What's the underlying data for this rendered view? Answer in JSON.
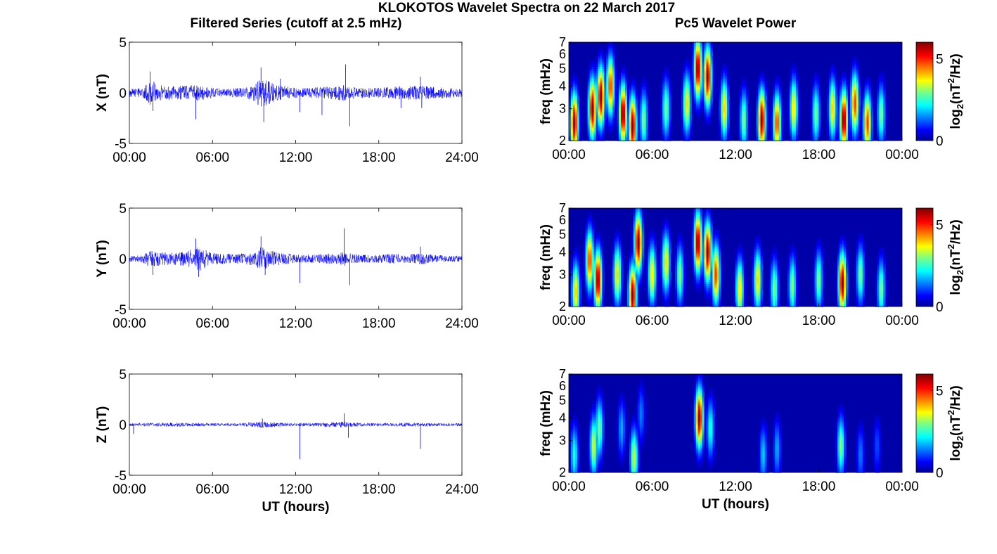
{
  "figure": {
    "title": "KLOKOTOS Wavelet Spectra on 22 March 2017",
    "left_column_title": "Filtered Series (cutoff at 2.5 mHz)",
    "right_column_title": "Pc5 Wavelet Power"
  },
  "chart_data": [
    {
      "type": "line",
      "panel": "X",
      "ylabel": "X (nT)",
      "xlabel": "",
      "xlim": [
        0,
        24
      ],
      "ylim": [
        -5,
        5
      ],
      "yticks": [
        "5",
        "0",
        "-5"
      ],
      "xticks": [
        "00:00",
        "06:00",
        "12:00",
        "18:00",
        "24:00"
      ],
      "line_color": "#0000ff",
      "envelope": {
        "x": [
          0,
          1,
          1.5,
          2,
          2.5,
          3,
          4,
          5,
          6,
          7,
          8,
          9,
          9.5,
          10,
          10.5,
          11,
          12,
          13,
          14,
          15,
          15.5,
          16,
          17,
          18,
          19,
          20,
          21,
          22,
          23,
          24
        ],
        "amplitude": [
          0.4,
          0.5,
          1.2,
          1.0,
          0.8,
          0.7,
          0.7,
          0.8,
          0.5,
          0.4,
          0.5,
          0.8,
          1.5,
          1.2,
          0.8,
          0.7,
          0.5,
          0.5,
          0.6,
          0.7,
          0.8,
          0.6,
          0.5,
          0.5,
          0.6,
          0.7,
          0.7,
          0.6,
          0.5,
          0.4
        ]
      },
      "spikes": [
        {
          "x": 1.5,
          "y": 2.1
        },
        {
          "x": 1.7,
          "y": -1.8
        },
        {
          "x": 4.8,
          "y": -2.6
        },
        {
          "x": 9.5,
          "y": 2.5
        },
        {
          "x": 9.7,
          "y": -2.9
        },
        {
          "x": 10.9,
          "y": 1.4
        },
        {
          "x": 12.3,
          "y": -1.9
        },
        {
          "x": 13.9,
          "y": -2.2
        },
        {
          "x": 15.6,
          "y": 2.8
        },
        {
          "x": 15.9,
          "y": -3.3
        },
        {
          "x": 19.6,
          "y": -1.5
        },
        {
          "x": 21.0,
          "y": 1.6
        },
        {
          "x": 21.1,
          "y": -1.5
        }
      ]
    },
    {
      "type": "heatmap",
      "panel": "X",
      "ylabel": "freq (mHz)",
      "xlabel": "",
      "xlim": [
        0,
        24
      ],
      "ylim": [
        2,
        7
      ],
      "yscale": "log",
      "yticks": [
        "2",
        "3",
        "4",
        "5",
        "6",
        "7"
      ],
      "xticks": [
        "00:00",
        "06:00",
        "12:00",
        "18:00",
        "00:00"
      ],
      "colorbar": {
        "label_prefix": "log",
        "label_sub": "2",
        "label_mid": "(nT",
        "label_sup": "2",
        "label_suffix": "/Hz)",
        "ticks": [
          "5",
          "0"
        ],
        "range": [
          0,
          6
        ]
      },
      "peaks": [
        {
          "t": 0.4,
          "f": 2.5,
          "p": 6
        },
        {
          "t": 1.7,
          "f": 3.0,
          "p": 6
        },
        {
          "t": 2.3,
          "f": 3.5,
          "p": 6
        },
        {
          "t": 3.0,
          "f": 4.0,
          "p": 5
        },
        {
          "t": 3.9,
          "f": 2.8,
          "p": 6
        },
        {
          "t": 4.6,
          "f": 2.4,
          "p": 6
        },
        {
          "t": 5.4,
          "f": 2.6,
          "p": 3
        },
        {
          "t": 7.0,
          "f": 3.0,
          "p": 3
        },
        {
          "t": 8.5,
          "f": 3.2,
          "p": 4
        },
        {
          "t": 9.3,
          "f": 5.0,
          "p": 6
        },
        {
          "t": 10.0,
          "f": 4.5,
          "p": 6
        },
        {
          "t": 11.2,
          "f": 3.0,
          "p": 4
        },
        {
          "t": 12.6,
          "f": 2.6,
          "p": 3
        },
        {
          "t": 13.9,
          "f": 2.6,
          "p": 6
        },
        {
          "t": 15.0,
          "f": 2.5,
          "p": 5
        },
        {
          "t": 16.2,
          "f": 3.0,
          "p": 4
        },
        {
          "t": 17.8,
          "f": 2.8,
          "p": 3
        },
        {
          "t": 19.0,
          "f": 3.0,
          "p": 4
        },
        {
          "t": 19.8,
          "f": 2.6,
          "p": 6
        },
        {
          "t": 20.6,
          "f": 3.2,
          "p": 5
        },
        {
          "t": 21.5,
          "f": 2.5,
          "p": 5
        },
        {
          "t": 22.5,
          "f": 2.8,
          "p": 3
        }
      ]
    },
    {
      "type": "line",
      "panel": "Y",
      "ylabel": "Y (nT)",
      "xlabel": "",
      "xlim": [
        0,
        24
      ],
      "ylim": [
        -5,
        5
      ],
      "yticks": [
        "5",
        "0",
        "-5"
      ],
      "xticks": [
        "00:00",
        "06:00",
        "12:00",
        "18:00",
        "24:00"
      ],
      "line_color": "#0000ff",
      "envelope": {
        "x": [
          0,
          1,
          1.5,
          2,
          3,
          4,
          5,
          6,
          7,
          8,
          9,
          9.5,
          10,
          11,
          12,
          13,
          14,
          15,
          15.5,
          16,
          17,
          18,
          19,
          20,
          21,
          22,
          23,
          24
        ],
        "amplitude": [
          0.3,
          0.4,
          0.9,
          0.7,
          0.6,
          0.7,
          1.2,
          0.6,
          0.5,
          0.5,
          0.7,
          1.2,
          0.9,
          0.6,
          0.4,
          0.4,
          0.5,
          0.5,
          0.7,
          0.5,
          0.4,
          0.4,
          0.5,
          0.4,
          0.6,
          0.4,
          0.3,
          0.3
        ]
      },
      "spikes": [
        {
          "x": 1.7,
          "y": -1.6
        },
        {
          "x": 4.8,
          "y": 2.0
        },
        {
          "x": 5.0,
          "y": -1.8
        },
        {
          "x": 9.5,
          "y": 2.2
        },
        {
          "x": 9.8,
          "y": -1.6
        },
        {
          "x": 12.3,
          "y": -2.4
        },
        {
          "x": 15.5,
          "y": 3.0
        },
        {
          "x": 15.9,
          "y": -2.6
        },
        {
          "x": 21.0,
          "y": 1.2
        }
      ]
    },
    {
      "type": "heatmap",
      "panel": "Y",
      "ylabel": "freq (mHz)",
      "xlabel": "",
      "xlim": [
        0,
        24
      ],
      "ylim": [
        2,
        7
      ],
      "yscale": "log",
      "yticks": [
        "2",
        "3",
        "4",
        "5",
        "6",
        "7"
      ],
      "xticks": [
        "00:00",
        "06:00",
        "12:00",
        "18:00",
        "00:00"
      ],
      "colorbar": {
        "label_prefix": "log",
        "label_sub": "2",
        "label_mid": "(nT",
        "label_sup": "2",
        "label_suffix": "/Hz)",
        "ticks": [
          "5",
          "0"
        ],
        "range": [
          0,
          6
        ]
      },
      "peaks": [
        {
          "t": 0.5,
          "f": 2.4,
          "p": 4
        },
        {
          "t": 1.5,
          "f": 3.6,
          "p": 5
        },
        {
          "t": 2.1,
          "f": 2.8,
          "p": 6
        },
        {
          "t": 3.5,
          "f": 3.0,
          "p": 4
        },
        {
          "t": 4.6,
          "f": 2.3,
          "p": 6
        },
        {
          "t": 5.0,
          "f": 4.5,
          "p": 6
        },
        {
          "t": 6.0,
          "f": 3.0,
          "p": 4
        },
        {
          "t": 7.0,
          "f": 3.5,
          "p": 4
        },
        {
          "t": 8.0,
          "f": 3.0,
          "p": 3
        },
        {
          "t": 9.3,
          "f": 4.5,
          "p": 6
        },
        {
          "t": 10.0,
          "f": 4.0,
          "p": 6
        },
        {
          "t": 10.6,
          "f": 3.0,
          "p": 5
        },
        {
          "t": 12.3,
          "f": 2.5,
          "p": 4
        },
        {
          "t": 13.6,
          "f": 2.8,
          "p": 4
        },
        {
          "t": 14.8,
          "f": 2.5,
          "p": 3
        },
        {
          "t": 16.1,
          "f": 2.6,
          "p": 3
        },
        {
          "t": 18.0,
          "f": 2.8,
          "p": 3
        },
        {
          "t": 19.7,
          "f": 2.7,
          "p": 6
        },
        {
          "t": 21.0,
          "f": 3.0,
          "p": 3
        },
        {
          "t": 22.5,
          "f": 2.5,
          "p": 3
        }
      ]
    },
    {
      "type": "line",
      "panel": "Z",
      "ylabel": "Z (nT)",
      "xlabel": "UT (hours)",
      "xlim": [
        0,
        24
      ],
      "ylim": [
        -5,
        5
      ],
      "yticks": [
        "5",
        "0",
        "-5"
      ],
      "xticks": [
        "00:00",
        "06:00",
        "12:00",
        "18:00",
        "24:00"
      ],
      "line_color": "#0000ff",
      "envelope": {
        "x": [
          0,
          2,
          4,
          6,
          8,
          9.5,
          10,
          12,
          14,
          15.5,
          16,
          18,
          20,
          22,
          24
        ],
        "amplitude": [
          0.15,
          0.2,
          0.2,
          0.15,
          0.15,
          0.35,
          0.25,
          0.15,
          0.2,
          0.3,
          0.2,
          0.15,
          0.2,
          0.15,
          0.15
        ]
      },
      "spikes": [
        {
          "x": 0.3,
          "y": -0.9
        },
        {
          "x": 9.6,
          "y": 0.6
        },
        {
          "x": 12.3,
          "y": -3.4
        },
        {
          "x": 15.5,
          "y": 1.1
        },
        {
          "x": 15.8,
          "y": -1.3
        },
        {
          "x": 21.0,
          "y": -2.4
        }
      ]
    },
    {
      "type": "heatmap",
      "panel": "Z",
      "ylabel": "freq (mHz)",
      "xlabel": "UT (hours)",
      "xlim": [
        0,
        24
      ],
      "ylim": [
        2,
        7
      ],
      "yscale": "log",
      "yticks": [
        "2",
        "3",
        "4",
        "5",
        "6",
        "7"
      ],
      "xticks": [
        "00:00",
        "06:00",
        "12:00",
        "18:00",
        "00:00"
      ],
      "colorbar": {
        "label_prefix": "log",
        "label_sub": "2",
        "label_mid": "(nT",
        "label_sup": "2",
        "label_suffix": "/Hz)",
        "ticks": [
          "5",
          "0"
        ],
        "range": [
          0,
          6
        ]
      },
      "peaks": [
        {
          "t": 0.4,
          "f": 2.5,
          "p": 2.5
        },
        {
          "t": 1.8,
          "f": 2.8,
          "p": 3.5
        },
        {
          "t": 2.2,
          "f": 3.5,
          "p": 3.0
        },
        {
          "t": 3.8,
          "f": 3.5,
          "p": 1.8
        },
        {
          "t": 4.7,
          "f": 2.4,
          "p": 3.5
        },
        {
          "t": 5.2,
          "f": 4.2,
          "p": 1.5
        },
        {
          "t": 9.4,
          "f": 4.0,
          "p": 6
        },
        {
          "t": 10.2,
          "f": 3.5,
          "p": 2.5
        },
        {
          "t": 14.0,
          "f": 2.5,
          "p": 2.0
        },
        {
          "t": 15.0,
          "f": 2.7,
          "p": 1.8
        },
        {
          "t": 19.6,
          "f": 2.8,
          "p": 3.0
        },
        {
          "t": 21.0,
          "f": 2.5,
          "p": 1.5
        },
        {
          "t": 22.2,
          "f": 2.8,
          "p": 1.2
        }
      ]
    }
  ]
}
